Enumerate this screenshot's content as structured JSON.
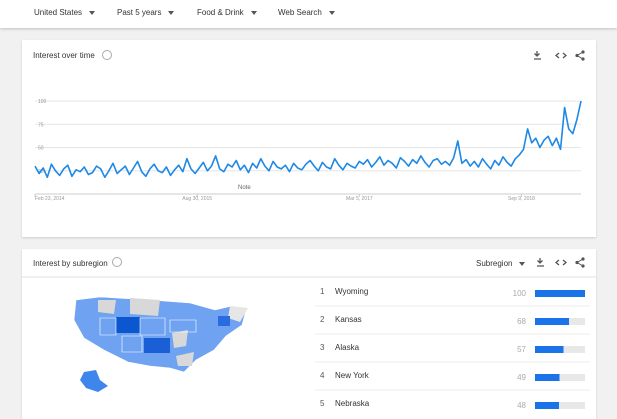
{
  "filters": [
    "United States",
    "Past 5 years",
    "Food & Drink",
    "Web Search"
  ],
  "over_time_title": "Interest over time",
  "chart_data": {
    "type": "line",
    "color": "#1e88e5",
    "values": [
      30,
      22,
      28,
      18,
      32,
      25,
      20,
      27,
      31,
      19,
      26,
      24,
      29,
      21,
      23,
      30,
      27,
      18,
      25,
      33,
      22,
      26,
      30,
      21,
      28,
      35,
      24,
      19,
      27,
      32,
      25,
      23,
      29,
      20,
      26,
      31,
      24,
      38,
      27,
      22,
      28,
      34,
      25,
      30,
      41,
      27,
      24,
      32,
      29,
      36,
      26,
      31,
      23,
      33,
      28,
      38,
      30,
      25,
      35,
      29,
      27,
      31,
      24,
      33,
      28,
      26,
      32,
      36,
      30,
      25,
      34,
      29,
      27,
      38,
      31,
      26,
      33,
      30,
      28,
      35,
      32,
      37,
      29,
      34,
      40,
      31,
      36,
      33,
      28,
      39,
      35,
      30,
      37,
      33,
      41,
      34,
      29,
      36,
      38,
      32,
      35,
      31,
      39,
      57,
      33,
      37,
      30,
      35,
      29,
      38,
      32,
      27,
      36,
      31,
      40,
      34,
      30,
      38,
      42,
      48,
      70,
      55,
      60,
      50,
      58,
      62,
      52,
      60,
      48,
      93,
      70,
      65,
      80,
      100
    ],
    "xlim": [
      0,
      133
    ],
    "xticks": [
      {
        "value": 0,
        "label": "Feb 23, 2014"
      },
      {
        "value": 39.5,
        "label": "Aug 30, 2015"
      },
      {
        "value": 79,
        "label": "Mar 5, 2017"
      },
      {
        "value": 118.5,
        "label": "Sep 9, 2018"
      }
    ],
    "ylim": [
      0,
      100
    ],
    "yticks": [
      25,
      50,
      75,
      100
    ],
    "grid": true,
    "annotation": {
      "x": 51,
      "text": "Note"
    }
  },
  "subregion": {
    "title": "Interest by subregion",
    "dropdown": "Subregion",
    "rows": [
      {
        "rank": 1,
        "name": "Wyoming",
        "value": 100
      },
      {
        "rank": 2,
        "name": "Kansas",
        "value": 68
      },
      {
        "rank": 3,
        "name": "Alaska",
        "value": 57
      },
      {
        "rank": 4,
        "name": "New York",
        "value": 49
      },
      {
        "rank": 5,
        "name": "Nebraska",
        "value": 48
      }
    ]
  }
}
